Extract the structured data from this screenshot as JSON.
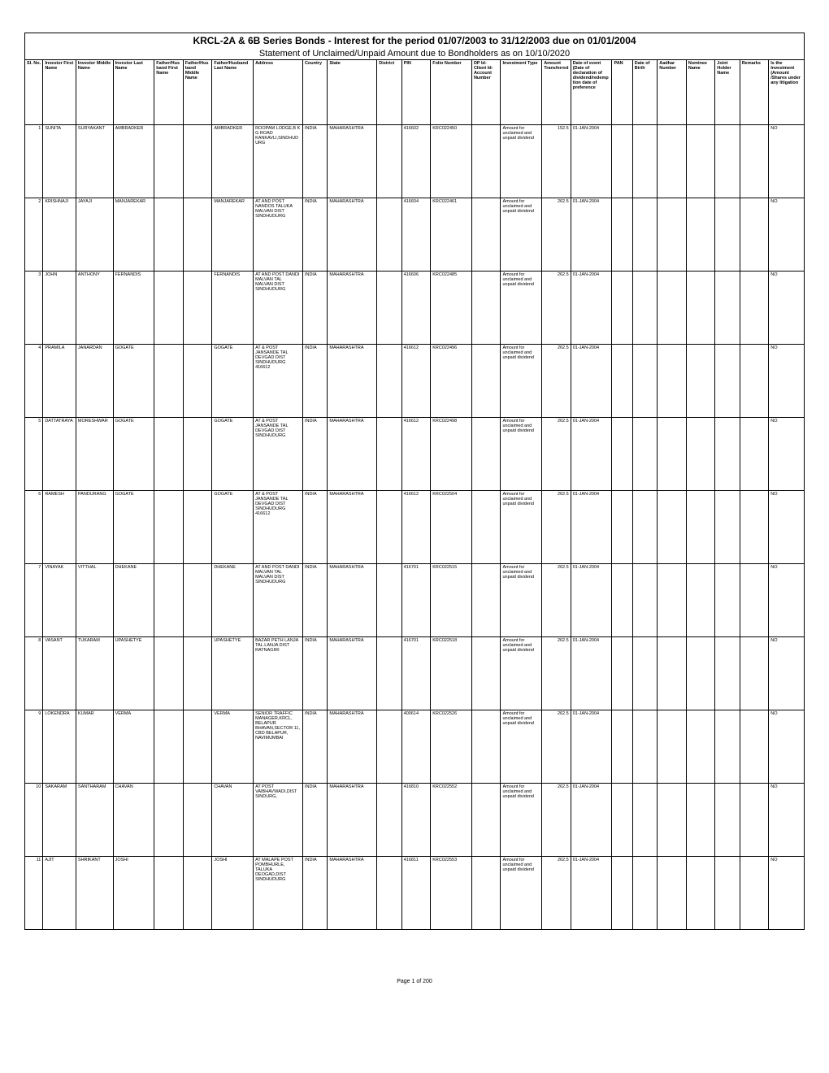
{
  "title1": "KRCL-2A & 6B Series Bonds - Interest for the period 01/07/2003 to 31/12/2003 due on 01/01/2004",
  "title2": "Statement of Unclaimed/Unpaid Amount due to Bondholders as on 10/10/2020",
  "footer": "Page 1 of 200",
  "columns": [
    "Sl. No.",
    "Investor First Name",
    "Investor Middle Name",
    "Investor Last Name",
    "Father/Husband First Name",
    "Father/Husband Middle Name",
    "Father/Husband Last Name",
    "Address",
    "Country",
    "State",
    "District",
    "PIN",
    "Folio Number",
    "DP Id-Client Id-Account Number",
    "Investment Type",
    "Amount Transferred",
    "Date of event (Date of declaration of dividend/redemption date of preference",
    "PAN",
    "Date of Birth",
    "Aadhar Number",
    "Nominee Name",
    "Joint Holder Name",
    "Remarks",
    "Is the Investment (Amount /Shares under any litigation"
  ],
  "col_widths": [
    "2.2%",
    "4%",
    "4.5%",
    "5%",
    "3.5%",
    "3.5%",
    "5%",
    "6%",
    "3%",
    "6%",
    "3%",
    "3.5%",
    "5%",
    "3.5%",
    "5%",
    "3.5%",
    "5%",
    "2.5%",
    "3%",
    "3.5%",
    "3.5%",
    "3%",
    "3.5%",
    "4.3%"
  ],
  "rows": [
    {
      "sl": "1",
      "first": "SUNITA",
      "middle": "SURYAKANT",
      "last": "AMBRADKER",
      "fh_first": "",
      "fh_middle": "",
      "fh_last": "AMBRADKER",
      "address": "ROOPAM LODGE,B K G ROAD KANKAVLI,SINDHUDURG",
      "country": "INDIA",
      "state": "MAHARASHTRA",
      "district": "",
      "pin": "416602",
      "folio": "KRC022450",
      "dp": "",
      "inv_type": "Amount for unclaimed and unpaid dividend",
      "amount": "152.5",
      "event": "01-JAN-2004",
      "pan": "",
      "dob": "",
      "aadhar": "",
      "nominee": "",
      "joint": "",
      "remarks": "",
      "litig": "NO"
    },
    {
      "sl": "2",
      "first": "KRISHNAJI",
      "middle": "JAYAJI",
      "last": "MANJAREKAR",
      "fh_first": "",
      "fh_middle": "",
      "fh_last": "MANJAREKAR",
      "address": "AT AND POST NANDOS TALUKA MALVAN DIST SINDHUDURG",
      "country": "INDIA",
      "state": "MAHARASHTRA",
      "district": "",
      "pin": "416604",
      "folio": "KRC022461",
      "dp": "",
      "inv_type": "Amount for unclaimed and unpaid dividend",
      "amount": "262.5",
      "event": "01-JAN-2004",
      "pan": "",
      "dob": "",
      "aadhar": "",
      "nominee": "",
      "joint": "",
      "remarks": "",
      "litig": "NO"
    },
    {
      "sl": "3",
      "first": "JOHN",
      "middle": "ANTHONY",
      "last": "FERNANDIS",
      "fh_first": "",
      "fh_middle": "",
      "fh_last": "FERNANDIS",
      "address": "AT AND POST DANDI MALVAN TAL MALVAN DIST SINDHUDURG",
      "country": "INDIA",
      "state": "MAHARASHTRA",
      "district": "",
      "pin": "416606",
      "folio": "KRC022485",
      "dp": "",
      "inv_type": "Amount for unclaimed and unpaid dividend",
      "amount": "262.5",
      "event": "01-JAN-2004",
      "pan": "",
      "dob": "",
      "aadhar": "",
      "nominee": "",
      "joint": "",
      "remarks": "",
      "litig": "NO"
    },
    {
      "sl": "4",
      "first": "PRAMILA",
      "middle": "JANARDAN",
      "last": "GOGATE",
      "fh_first": "",
      "fh_middle": "",
      "fh_last": "GOGATE",
      "address": "AT & POST JANSANDE TAL DEVGAD DIST SINDHUDURG 416612",
      "country": "INDIA",
      "state": "MAHARASHTRA",
      "district": "",
      "pin": "416612",
      "folio": "KRC022496",
      "dp": "",
      "inv_type": "Amount for unclaimed and unpaid dividend",
      "amount": "262.5",
      "event": "01-JAN-2004",
      "pan": "",
      "dob": "",
      "aadhar": "",
      "nominee": "",
      "joint": "",
      "remarks": "",
      "litig": "NO"
    },
    {
      "sl": "5",
      "first": "DATTATRAYA",
      "middle": "MORESHWAR",
      "last": "GOGATE",
      "fh_first": "",
      "fh_middle": "",
      "fh_last": "GOGATE",
      "address": "AT & POST JANSANDE TAL DEVGAD DIST SINDHUDURG",
      "country": "INDIA",
      "state": "MAHARASHTRA",
      "district": "",
      "pin": "416612",
      "folio": "KRC022498",
      "dp": "",
      "inv_type": "Amount for unclaimed and unpaid dividend",
      "amount": "262.5",
      "event": "01-JAN-2004",
      "pan": "",
      "dob": "",
      "aadhar": "",
      "nominee": "",
      "joint": "",
      "remarks": "",
      "litig": "NO"
    },
    {
      "sl": "6",
      "first": "RAMESH",
      "middle": "PANDURANG",
      "last": "GOGATE",
      "fh_first": "",
      "fh_middle": "",
      "fh_last": "GOGATE",
      "address": "AT & POST JANSANDE TAL DEVGAD DIST SINDHUDURG 416612",
      "country": "INDIA",
      "state": "MAHARASHTRA",
      "district": "",
      "pin": "416612",
      "folio": "KRC022504",
      "dp": "",
      "inv_type": "Amount for unclaimed and unpaid dividend",
      "amount": "262.5",
      "event": "01-JAN-2004",
      "pan": "",
      "dob": "",
      "aadhar": "",
      "nominee": "",
      "joint": "",
      "remarks": "",
      "litig": "NO"
    },
    {
      "sl": "7",
      "first": "VINAYAK",
      "middle": "VITTHAL",
      "last": "DHEKANE",
      "fh_first": "",
      "fh_middle": "",
      "fh_last": "DHEKANE",
      "address": "AT AND POST DANDI MALVAN TAL MALVAN DIST SINDHUDURG",
      "country": "INDIA",
      "state": "MAHARASHTRA",
      "district": "",
      "pin": "416701",
      "folio": "KRC022515",
      "dp": "",
      "inv_type": "Amount for unclaimed and unpaid dividend",
      "amount": "262.5",
      "event": "01-JAN-2004",
      "pan": "",
      "dob": "",
      "aadhar": "",
      "nominee": "",
      "joint": "",
      "remarks": "",
      "litig": "NO"
    },
    {
      "sl": "8",
      "first": "VASANT",
      "middle": "TUKARAM",
      "last": "UPASHETYE",
      "fh_first": "",
      "fh_middle": "",
      "fh_last": "UPASHETYE",
      "address": "BAZAR PETH LANJA TAL.LANJA DIST RATNAGIRI",
      "country": "INDIA",
      "state": "MAHARASHTRA",
      "district": "",
      "pin": "416701",
      "folio": "KRC022518",
      "dp": "",
      "inv_type": "Amount for unclaimed and unpaid dividend",
      "amount": "262.5",
      "event": "01-JAN-2004",
      "pan": "",
      "dob": "",
      "aadhar": "",
      "nominee": "",
      "joint": "",
      "remarks": "",
      "litig": "NO"
    },
    {
      "sl": "9",
      "first": "LOKENDRA",
      "middle": "KUMAR",
      "last": "VERMA",
      "fh_first": "",
      "fh_middle": "",
      "fh_last": "VERMA",
      "address": "SENIOR TRAFFIC MANAGER,KRCL, BELAPUR BHAVAN,SECTOR 11, CBD BELAPUR, NAVIMUMBAI",
      "country": "INDIA",
      "state": "MAHARASHTRA",
      "district": "",
      "pin": "400614",
      "folio": "KRC022526",
      "dp": "",
      "inv_type": "Amount for unclaimed and unpaid dividend",
      "amount": "262.5",
      "event": "01-JAN-2004",
      "pan": "",
      "dob": "",
      "aadhar": "",
      "nominee": "",
      "joint": "",
      "remarks": "",
      "litig": "NO"
    },
    {
      "sl": "10",
      "first": "SAKARAM",
      "middle": "SANTHARAM",
      "last": "CHAVAN",
      "fh_first": "",
      "fh_middle": "",
      "fh_last": "CHAVAN",
      "address": "AT POST VAIBHAVWADI,DIST SINDURG,",
      "country": "INDIA",
      "state": "MAHARASHTRA",
      "district": "",
      "pin": "416810",
      "folio": "KRC022552",
      "dp": "",
      "inv_type": "Amount for unclaimed and unpaid dividend",
      "amount": "262.5",
      "event": "01-JAN-2004",
      "pan": "",
      "dob": "",
      "aadhar": "",
      "nominee": "",
      "joint": "",
      "remarks": "",
      "litig": "NO"
    },
    {
      "sl": "11",
      "first": "AJIT",
      "middle": "SHRIKANT",
      "last": "JOSHI",
      "fh_first": "",
      "fh_middle": "",
      "fh_last": "JOSHI",
      "address": "AT MALAPE POST POMBHURLE, TALUKA DEOGAD,DIST SINDHUDURG",
      "country": "INDIA",
      "state": "MAHARASHTRA",
      "district": "",
      "pin": "416811",
      "folio": "KRC022553",
      "dp": "",
      "inv_type": "Amount for unclaimed and unpaid dividend",
      "amount": "262.5",
      "event": "01-JAN-2004",
      "pan": "",
      "dob": "",
      "aadhar": "",
      "nominee": "",
      "joint": "",
      "remarks": "",
      "litig": "NO"
    }
  ]
}
